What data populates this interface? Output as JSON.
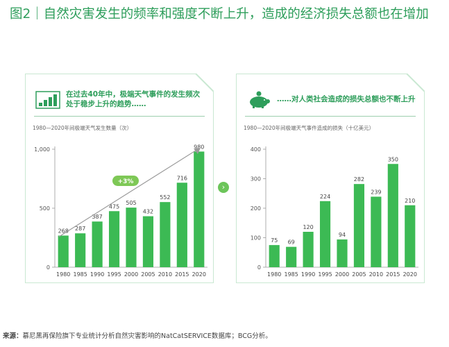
{
  "title": "图2｜自然灾害发生的频率和强度不断上升，造成的经济损失总额也在增加",
  "colors": {
    "accent": "#2e9e5b",
    "bar": "#3cba54",
    "badge": "#7ec856"
  },
  "left_panel": {
    "icon": "bar-chart-icon",
    "header": "在过去40年中，极端天气事件的发生频次处于稳步上升的趋势……",
    "subtitle": "1980—2020年间极端天气发生数量（次）"
  },
  "right_panel": {
    "icon": "piggy-bank-icon",
    "header": "……对人类社会造成的损失总额也不断上升",
    "subtitle": "1980—2020年间极端天气事件造成的损失（十亿美元）"
  },
  "arrow_icon": "chevron-right-icon",
  "source_label": "来源：",
  "source_text": "慕尼黑再保险旗下专业统计分析自然灾害影响的NatCatSERVICE数据库；BCG分析。",
  "chart_data": [
    {
      "type": "bar",
      "categories": [
        "1980",
        "1985",
        "1990",
        "1995",
        "2000",
        "2005",
        "2010",
        "2015",
        "2020"
      ],
      "values": [
        268,
        287,
        387,
        475,
        505,
        432,
        552,
        716,
        980
      ],
      "ylim": [
        0,
        1000
      ],
      "yticks": [
        0,
        500,
        1000
      ],
      "ytick_labels": [
        "0",
        "500",
        "1,000"
      ],
      "annotation": "+3%"
    },
    {
      "type": "bar",
      "categories": [
        "1980",
        "1985",
        "1990",
        "1995",
        "2000",
        "2005",
        "2010",
        "2015",
        "2020"
      ],
      "values": [
        75,
        69,
        120,
        224,
        94,
        282,
        239,
        350,
        210
      ],
      "ylim": [
        0,
        400
      ],
      "yticks": [
        0,
        100,
        200,
        300,
        400
      ],
      "ytick_labels": [
        "0",
        "100",
        "200",
        "300",
        "400"
      ]
    }
  ]
}
